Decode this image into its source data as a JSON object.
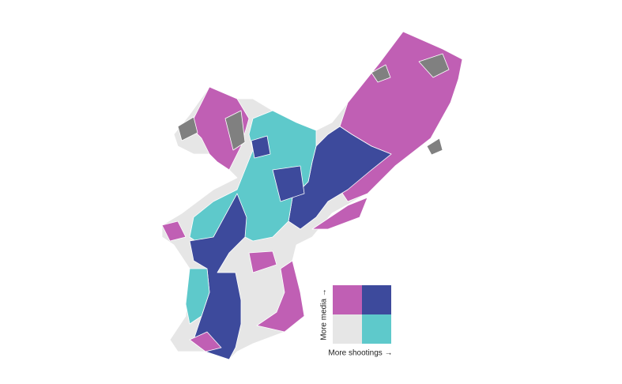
{
  "legend": {
    "y_label": "More media →",
    "x_label": "More shootings →"
  }
}
